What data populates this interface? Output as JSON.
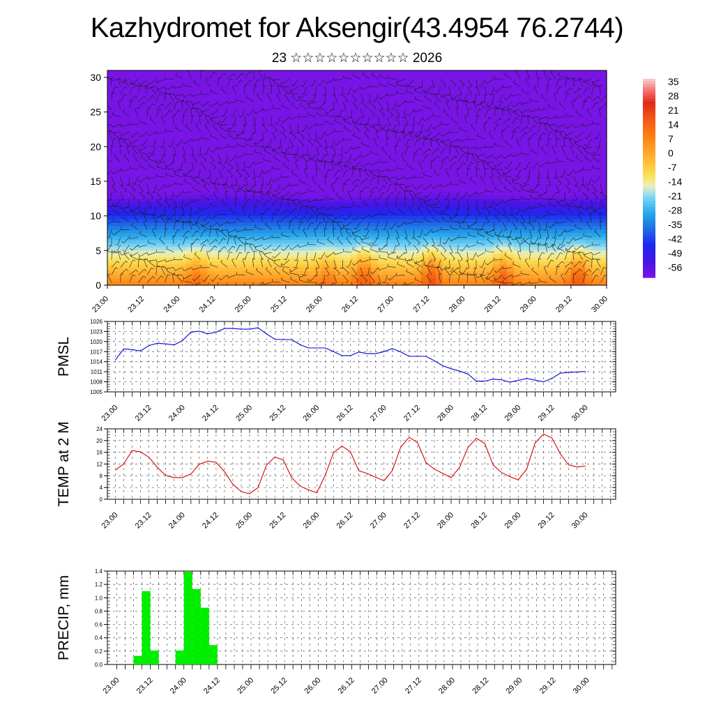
{
  "title": "Kazhydromet for Aksengir(43.4954 76.2744)",
  "subtitle": "23 ☆☆☆☆☆☆☆☆☆☆ 2026",
  "time_labels": [
    "23.00",
    "23.12",
    "24.00",
    "24.12",
    "25.00",
    "25.12",
    "26.00",
    "26.12",
    "27.00",
    "27.12",
    "28.00",
    "28.12",
    "29.00",
    "29.12",
    "30.00"
  ],
  "chart_data": [
    {
      "type": "heatmap",
      "name": "temperature-wind-cross-section",
      "x_tick_labels": [
        "23.00",
        "23.12",
        "24.00",
        "24.12",
        "25.00",
        "25.12",
        "26.00",
        "26.12",
        "27.00",
        "27.12",
        "28.00",
        "28.12",
        "29.00",
        "29.12",
        "30.00"
      ],
      "y_ticks": [
        0,
        5,
        10,
        15,
        20,
        25,
        30
      ],
      "ylim": [
        0,
        31
      ],
      "colorbar": {
        "labels": [
          "35",
          "28",
          "21",
          "14",
          "7",
          "0",
          "-7",
          "-14",
          "-21",
          "-28",
          "-35",
          "-42",
          "-49",
          "-56"
        ],
        "range": [
          -60,
          38
        ]
      },
      "warm_spots": [
        {
          "time": 24.25,
          "level": 1.5,
          "strength": 8
        },
        {
          "time": 26.08,
          "level": 1.5,
          "strength": 6
        },
        {
          "time": 26.6,
          "level": 1.5,
          "strength": 12
        },
        {
          "time": 27.55,
          "level": 1.5,
          "strength": 14
        },
        {
          "time": 28.55,
          "level": 1.5,
          "strength": 12
        },
        {
          "time": 29.6,
          "level": 1.5,
          "strength": 13
        }
      ]
    },
    {
      "type": "line",
      "name": "pmsl",
      "ylabel": "PMSL",
      "y_ticks": [
        "1026",
        "1023",
        "1020",
        "1017",
        "1014",
        "1011",
        "1008",
        "1005"
      ],
      "ylim": [
        1005,
        1026
      ],
      "x_tick_labels": [
        "23.00",
        "23.12",
        "24.00",
        "24.12",
        "25.00",
        "25.12",
        "26.00",
        "26.12",
        "27.00",
        "27.12",
        "28.00",
        "28.12",
        "29.00",
        "29.12",
        "30.00"
      ],
      "series": [
        {
          "name": "PMSL",
          "color": "#0000dd",
          "values": [
            1014.5,
            1017.8,
            1017.6,
            1017.2,
            1018.8,
            1019.5,
            1019.3,
            1019.0,
            1020.3,
            1022.8,
            1023.1,
            1022.3,
            1022.8,
            1023.9,
            1023.9,
            1023.7,
            1023.7,
            1024.1,
            1022.3,
            1020.7,
            1020.6,
            1020.6,
            1019.1,
            1018.1,
            1018.1,
            1018.1,
            1017.0,
            1015.8,
            1015.8,
            1016.9,
            1016.4,
            1016.4,
            1017.0,
            1017.9,
            1016.9,
            1015.6,
            1015.6,
            1015.6,
            1014.3,
            1012.8,
            1011.9,
            1011.2,
            1010.3,
            1008.2,
            1008.2,
            1008.8,
            1008.6,
            1007.9,
            1008.4,
            1009.0,
            1008.5,
            1008.0,
            1009.0,
            1010.6,
            1010.8,
            1010.9,
            1011.1
          ]
        }
      ]
    },
    {
      "type": "line",
      "name": "temp-2m",
      "ylabel": "TEMP at 2 M",
      "y_ticks": [
        "24",
        "20",
        "16",
        "12",
        "8",
        "4",
        "0"
      ],
      "ylim": [
        0,
        24
      ],
      "x_tick_labels": [
        "23.00",
        "23.12",
        "24.00",
        "24.12",
        "25.00",
        "25.12",
        "26.00",
        "26.12",
        "27.00",
        "27.12",
        "28.00",
        "28.12",
        "29.00",
        "29.12",
        "30.00"
      ],
      "series": [
        {
          "name": "T2M",
          "color": "#dd0000",
          "values": [
            9.9,
            12.0,
            16.6,
            16.1,
            14.3,
            10.9,
            8.1,
            7.4,
            7.4,
            8.6,
            11.9,
            13.0,
            12.6,
            9.4,
            5.1,
            2.6,
            1.9,
            4.0,
            11.6,
            14.4,
            13.4,
            7.4,
            4.5,
            3.2,
            2.2,
            8.2,
            15.9,
            18.1,
            16.2,
            9.7,
            8.8,
            7.5,
            6.3,
            9.8,
            17.8,
            21.1,
            19.3,
            12.5,
            10.3,
            8.8,
            7.4,
            10.8,
            17.6,
            20.8,
            19.0,
            11.7,
            9.1,
            7.7,
            6.6,
            10.3,
            19.2,
            22.2,
            20.9,
            15.5,
            11.7,
            11.0,
            11.3
          ]
        }
      ]
    },
    {
      "type": "bar",
      "name": "precip",
      "ylabel": "PRECIP, mm",
      "y_ticks": [
        "1.4",
        "1.2",
        "1.0",
        "0.8",
        "0.6",
        "0.4",
        "0.2",
        "0.0"
      ],
      "ylim": [
        0,
        1.4
      ],
      "x_tick_labels": [
        "23.00",
        "23.12",
        "24.00",
        "24.12",
        "25.00",
        "25.12",
        "26.00",
        "26.12",
        "27.00",
        "27.12",
        "28.00",
        "28.12",
        "29.00",
        "29.12",
        "30.00"
      ],
      "series": [
        {
          "name": "PRECIP",
          "color": "#00ee00",
          "values": [
            0,
            0,
            0,
            0.13,
            1.1,
            0.21,
            0,
            0,
            0.21,
            1.39,
            1.13,
            0.85,
            0.29,
            0,
            0,
            0,
            0,
            0,
            0,
            0,
            0,
            0,
            0,
            0,
            0,
            0,
            0,
            0,
            0,
            0,
            0,
            0,
            0,
            0,
            0,
            0,
            0,
            0,
            0,
            0,
            0,
            0,
            0,
            0,
            0,
            0,
            0,
            0,
            0,
            0,
            0,
            0,
            0,
            0,
            0,
            0
          ]
        }
      ]
    }
  ]
}
